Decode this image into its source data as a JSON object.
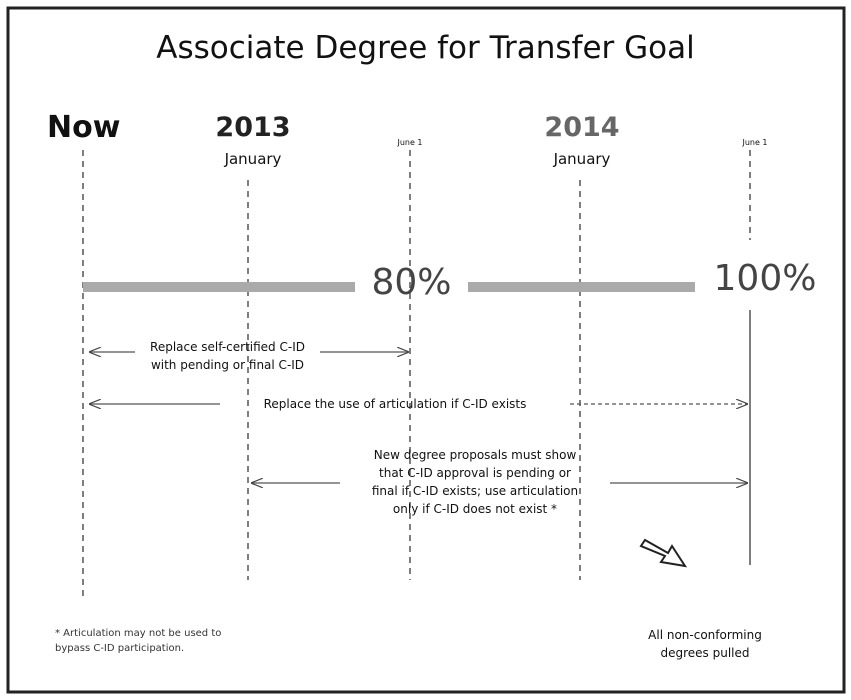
{
  "title": "Associate Degree for Transfer Goal",
  "columns": [
    {
      "heading": "Now"
    },
    {
      "heading": "2013",
      "sub": "January"
    },
    {
      "sub": "June 1"
    },
    {
      "heading": "2014",
      "sub": "January"
    },
    {
      "sub": "June 1"
    }
  ],
  "milestones": [
    "80%",
    "100%"
  ],
  "arrows": [
    {
      "lines": [
        "Replace self-certified C-ID",
        "with pending or final C-ID"
      ]
    },
    {
      "lines": [
        "Replace the use of articulation if C-ID exists"
      ]
    },
    {
      "lines": [
        "New degree proposals must show",
        "that C-ID approval is pending or",
        "final if C-ID exists; use articulation",
        "only if C-ID does not exist *"
      ]
    }
  ],
  "footnote": [
    "* Articulation may not be used to",
    "bypass C-ID participation."
  ],
  "outcome": [
    "All non-conforming",
    "degrees pulled"
  ]
}
